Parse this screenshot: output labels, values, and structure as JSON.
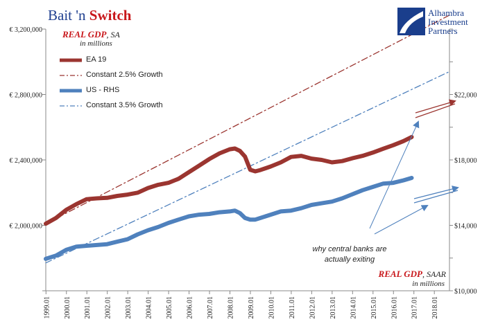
{
  "header": {
    "title_part1": "Bait 'n ",
    "title_part2": "Switch",
    "logo_line1": "Alhambra",
    "logo_line2": "Investment",
    "logo_line3": "Partners"
  },
  "notes": {
    "left_title": "REAL GDP",
    "left_suffix": ", SA",
    "left_units": "in millions",
    "right_title": "REAL GDP",
    "right_suffix": ", SAAR",
    "right_units": "in millions",
    "annotation_line1": "why central banks are",
    "annotation_line2": "actually exiting"
  },
  "legend": [
    {
      "label": "EA 19",
      "color": "#9b3530",
      "style": "solid"
    },
    {
      "label": "Constant 2.5% Growth",
      "color": "#9b3530",
      "style": "dashdot"
    },
    {
      "label": "US - RHS",
      "color": "#4f81bd",
      "style": "solid"
    },
    {
      "label": "Constant 3.5% Growth",
      "color": "#4f81bd",
      "style": "dashdot"
    }
  ],
  "chart_data": {
    "type": "line",
    "x_tick_labels": [
      "1999.01",
      "2000.01",
      "2001.01",
      "2002.01",
      "2003.01",
      "2004.01",
      "2005.01",
      "2006.01",
      "2007.01",
      "2008.01",
      "2009.01",
      "2010.01",
      "2011.01",
      "2012.01",
      "2013.01",
      "2014.01",
      "2015.01",
      "2016.01",
      "2017.01",
      "2018.01"
    ],
    "xlim": [
      1999.0,
      2018.75
    ],
    "y_left": {
      "ticks": [
        "€ 2,000,000",
        "€ 2,400,000",
        "€ 2,800,000",
        "€ 3,200,000"
      ],
      "tick_values": [
        2000000,
        2400000,
        2800000,
        3200000
      ],
      "range": [
        1600000,
        3200000
      ]
    },
    "y_right": {
      "ticks": [
        "$10,000",
        "$14,000",
        "$18,000",
        "$22,000"
      ],
      "tick_values": [
        10000,
        14000,
        18000,
        22000
      ],
      "range": [
        10000,
        26000
      ]
    },
    "grid": false,
    "legend_position": "top-left",
    "series": [
      {
        "name": "EA 19",
        "axis": "left",
        "color": "#9b3530",
        "style": "solid",
        "x": [
          1999.0,
          1999.5,
          2000.0,
          2000.5,
          2001.0,
          2001.5,
          2002.0,
          2002.5,
          2003.0,
          2003.5,
          2004.0,
          2004.5,
          2005.0,
          2005.5,
          2006.0,
          2006.5,
          2007.0,
          2007.5,
          2008.0,
          2008.25,
          2008.5,
          2008.75,
          2009.0,
          2009.25,
          2009.5,
          2010.0,
          2010.5,
          2011.0,
          2011.5,
          2012.0,
          2012.5,
          2013.0,
          2013.5,
          2014.0,
          2014.5,
          2015.0,
          2015.5,
          2016.0,
          2016.5,
          2016.9
        ],
        "y": [
          2010000,
          2045000,
          2095000,
          2130000,
          2160000,
          2165000,
          2168000,
          2180000,
          2188000,
          2200000,
          2228000,
          2248000,
          2260000,
          2285000,
          2325000,
          2365000,
          2405000,
          2440000,
          2465000,
          2470000,
          2455000,
          2420000,
          2340000,
          2330000,
          2338000,
          2360000,
          2385000,
          2418000,
          2425000,
          2408000,
          2400000,
          2385000,
          2393000,
          2410000,
          2425000,
          2445000,
          2468000,
          2490000,
          2515000,
          2540000
        ]
      },
      {
        "name": "Constant 2.5% Growth",
        "axis": "left",
        "color": "#9b3530",
        "style": "dashdot",
        "x": [
          1999.0,
          2018.75
        ],
        "y": [
          2010000,
          3285000
        ]
      },
      {
        "name": "US - RHS",
        "axis": "right",
        "color": "#4f81bd",
        "style": "solid",
        "x": [
          1999.0,
          1999.5,
          2000.0,
          2000.5,
          2001.0,
          2001.5,
          2002.0,
          2002.5,
          2003.0,
          2003.5,
          2004.0,
          2004.5,
          2005.0,
          2005.5,
          2006.0,
          2006.5,
          2007.0,
          2007.5,
          2008.0,
          2008.25,
          2008.5,
          2008.75,
          2009.0,
          2009.25,
          2009.5,
          2010.0,
          2010.5,
          2011.0,
          2011.5,
          2012.0,
          2012.5,
          2013.0,
          2013.5,
          2014.0,
          2014.5,
          2015.0,
          2015.5,
          2016.0,
          2016.5,
          2016.9
        ],
        "y": [
          11950,
          12150,
          12500,
          12700,
          12750,
          12800,
          12850,
          13000,
          13150,
          13450,
          13700,
          13900,
          14150,
          14350,
          14550,
          14650,
          14700,
          14800,
          14850,
          14900,
          14750,
          14450,
          14350,
          14350,
          14450,
          14650,
          14850,
          14900,
          15050,
          15250,
          15350,
          15450,
          15650,
          15900,
          16150,
          16350,
          16550,
          16600,
          16750,
          16900
        ]
      },
      {
        "name": "Constant 3.5% Growth",
        "axis": "right",
        "color": "#4f81bd",
        "style": "dashdot",
        "x": [
          1999.0,
          2018.75
        ],
        "y": [
          11700,
          23400
        ]
      }
    ]
  }
}
